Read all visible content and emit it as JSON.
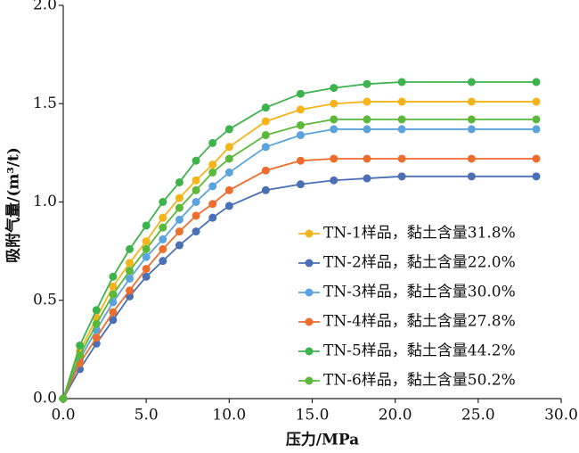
{
  "chart_data": {
    "type": "line",
    "x": [
      0,
      1,
      2,
      3,
      4,
      5,
      6,
      7,
      8,
      9,
      10,
      12.2,
      14.3,
      16.3,
      18.3,
      20.4,
      24.6,
      28.5
    ],
    "series": [
      {
        "name": "TN-1样品，黏土含量31.8%",
        "color": "#f4b41a",
        "values": [
          0,
          0.24,
          0.41,
          0.57,
          0.69,
          0.8,
          0.92,
          1.02,
          1.11,
          1.19,
          1.28,
          1.41,
          1.47,
          1.5,
          1.51,
          1.51,
          1.51,
          1.51
        ]
      },
      {
        "name": "TN-2样品，黏土含量22.0%",
        "color": "#4a6fb5",
        "values": [
          0,
          0.15,
          0.28,
          0.4,
          0.52,
          0.62,
          0.7,
          0.78,
          0.85,
          0.92,
          0.98,
          1.06,
          1.09,
          1.11,
          1.12,
          1.13,
          1.13,
          1.13
        ]
      },
      {
        "name": "TN-3样品，黏土含量30.0%",
        "color": "#5ba3dc",
        "values": [
          0,
          0.2,
          0.35,
          0.49,
          0.61,
          0.72,
          0.81,
          0.91,
          1.0,
          1.08,
          1.15,
          1.28,
          1.34,
          1.37,
          1.37,
          1.37,
          1.37,
          1.37
        ]
      },
      {
        "name": "TN-4样品，黏土含量27.8%",
        "color": "#ed6d2d",
        "values": [
          0,
          0.18,
          0.31,
          0.44,
          0.55,
          0.66,
          0.76,
          0.85,
          0.93,
          0.99,
          1.06,
          1.16,
          1.21,
          1.22,
          1.22,
          1.22,
          1.22,
          1.22
        ]
      },
      {
        "name": "TN-5样品，黏土含量44.2%",
        "color": "#3db34d",
        "values": [
          0,
          0.27,
          0.45,
          0.62,
          0.76,
          0.88,
          1.0,
          1.1,
          1.21,
          1.3,
          1.37,
          1.48,
          1.55,
          1.58,
          1.6,
          1.61,
          1.61,
          1.61
        ]
      },
      {
        "name": "TN-6样品，黏土含量50.2%",
        "color": "#5cb83a",
        "values": [
          0,
          0.22,
          0.38,
          0.53,
          0.65,
          0.76,
          0.87,
          0.97,
          1.06,
          1.15,
          1.22,
          1.34,
          1.39,
          1.42,
          1.42,
          1.42,
          1.42,
          1.42
        ]
      }
    ],
    "x_label": "压力/MPa",
    "y_label": "吸附气量/(m³/t)",
    "xlim": [
      0,
      30
    ],
    "ylim": [
      0,
      2
    ],
    "xticks": [
      {
        "value": 0,
        "label": "0.0"
      },
      {
        "value": 5,
        "label": "5.0"
      },
      {
        "value": 10,
        "label": "10.0"
      },
      {
        "value": 15,
        "label": "15.0"
      },
      {
        "value": 20,
        "label": "20.0"
      },
      {
        "value": 25,
        "label": "25.0"
      },
      {
        "value": 30,
        "label": "30.0"
      }
    ],
    "yticks": [
      {
        "value": 0,
        "label": "0.0"
      },
      {
        "value": 0.5,
        "label": "0.5"
      },
      {
        "value": 1,
        "label": "1.0"
      },
      {
        "value": 1.5,
        "label": "1.5"
      },
      {
        "value": 2,
        "label": "2.0"
      }
    ],
    "grid": false,
    "legend": "lower right"
  }
}
